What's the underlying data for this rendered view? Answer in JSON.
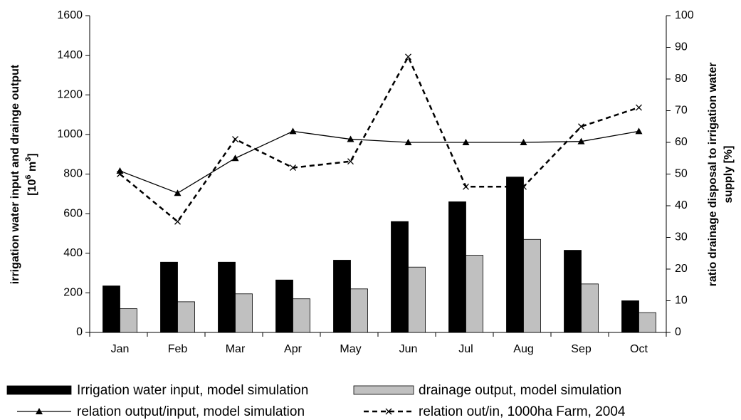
{
  "chart_data": {
    "type": "bar_line",
    "categories": [
      "Jan",
      "Feb",
      "Mar",
      "Apr",
      "May",
      "Jun",
      "Jul",
      "Aug",
      "Sep",
      "Oct"
    ],
    "y_label": "irrigation water input and drainge output",
    "y_label_unit": {
      "prefix": "[10",
      "exp1": "6",
      "mid": " m",
      "exp2": "3",
      "suffix": "]"
    },
    "y2_label": [
      "ratio drainage disposal to irrigation water",
      "supply  [%]"
    ],
    "ylim": [
      0,
      1600
    ],
    "yticks": [
      0,
      200,
      400,
      600,
      800,
      1000,
      1200,
      1400,
      1600
    ],
    "y2lim": [
      0,
      100
    ],
    "y2ticks": [
      0,
      10,
      20,
      30,
      40,
      50,
      60,
      70,
      80,
      90,
      100
    ],
    "series": [
      {
        "name": "Irrigation water input, model simulation",
        "kind": "bar",
        "color": "#000000",
        "values": [
          235,
          355,
          355,
          265,
          365,
          560,
          660,
          785,
          415,
          160
        ]
      },
      {
        "name": "drainage output, model simulation",
        "kind": "bar",
        "color": "#c0c0c0",
        "values": [
          120,
          155,
          195,
          170,
          220,
          330,
          390,
          470,
          245,
          100
        ]
      },
      {
        "name": "relation output/input, model simulation",
        "kind": "line",
        "axis": "y2",
        "marker": "triangle",
        "dash": false,
        "color": "#000000",
        "values": [
          51,
          44,
          55,
          63.5,
          61,
          60,
          60,
          60,
          60.3,
          63.5
        ]
      },
      {
        "name": "relation out/in, 1000ha Farm, 2004",
        "kind": "line",
        "axis": "y2",
        "marker": "x",
        "dash": true,
        "color": "#000000",
        "values": [
          50,
          35,
          61,
          52,
          54,
          87,
          46,
          46,
          65,
          71
        ]
      }
    ]
  }
}
